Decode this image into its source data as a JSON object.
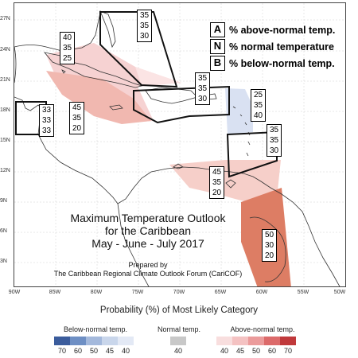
{
  "latitude_ticks": [
    "27N",
    "24N",
    "21N",
    "18N",
    "15N",
    "12N",
    "9N",
    "6N",
    "3N"
  ],
  "longitude_ticks": [
    "90W",
    "85W",
    "80W",
    "75W",
    "70W",
    "65W",
    "60W",
    "55W",
    "50W"
  ],
  "legend_key": [
    {
      "letter": "A",
      "text": "% above-normal temp."
    },
    {
      "letter": "N",
      "text": "% normal temperature"
    },
    {
      "letter": "B",
      "text": "% below-normal temp."
    }
  ],
  "regions": [
    {
      "id": "bahamas",
      "category": "none",
      "above": "35",
      "normal": "35",
      "below": "30"
    },
    {
      "id": "cuba",
      "category": "above",
      "level": "40",
      "above": "40",
      "normal": "35",
      "below": "25"
    },
    {
      "id": "belize",
      "category": "none",
      "above": "33",
      "normal": "33",
      "below": "33"
    },
    {
      "id": "jamaica-cayman",
      "category": "above",
      "level": "45",
      "above": "45",
      "normal": "35",
      "below": "20"
    },
    {
      "id": "hispaniola",
      "category": "none",
      "above": "35",
      "normal": "35",
      "below": "30"
    },
    {
      "id": "leeward-islands",
      "category": "below",
      "level": "40",
      "above": "25",
      "normal": "35",
      "below": "40"
    },
    {
      "id": "windward-islands",
      "category": "none",
      "above": "35",
      "normal": "35",
      "below": "30"
    },
    {
      "id": "abc-islands-trinidad",
      "category": "above",
      "level": "45",
      "above": "45",
      "normal": "35",
      "below": "20"
    },
    {
      "id": "guianas",
      "category": "above",
      "level": "50",
      "above": "50",
      "normal": "30",
      "below": "20"
    }
  ],
  "title": {
    "line1": "Maximum Temperature Outlook",
    "line2": "for the Caribbean",
    "line3": "May - June - July 2017"
  },
  "credit": {
    "line1": "Prepared by",
    "line2": "The Caribbean Regional Climate Outlook Forum (CariCOF)"
  },
  "scale": {
    "title": "Probability (%) of Most Likely Category",
    "below_label": "Below-normal temp.",
    "normal_label": "Normal temp.",
    "above_label": "Above-normal temp.",
    "below_ticks": [
      "70",
      "60",
      "50",
      "45",
      "40"
    ],
    "normal_ticks": [
      "40"
    ],
    "above_ticks": [
      "40",
      "45",
      "50",
      "60",
      "70"
    ],
    "below_colors": [
      "#3b5c9c",
      "#6e8fc4",
      "#a4b9dc",
      "#c9d6eb",
      "#e3e9f5"
    ],
    "normal_color": "#c8c8c8",
    "above_colors": [
      "#f8dede",
      "#f4c2c2",
      "#eb9b9b",
      "#dc6a6a",
      "#c0393b"
    ]
  }
}
